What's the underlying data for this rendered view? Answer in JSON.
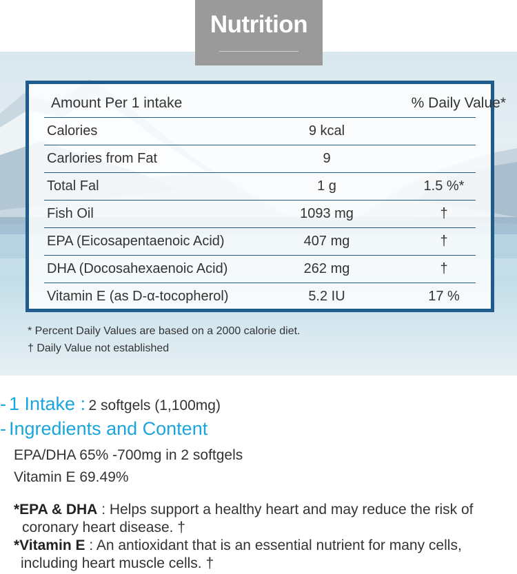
{
  "title": "Nutrition",
  "table": {
    "header": {
      "col1": "Amount Per 1 intake",
      "col3": "% Daily Value*"
    },
    "rows": [
      {
        "name": "Calories",
        "amount": "9 kcal",
        "dv": ""
      },
      {
        "name": "Carlories from Fat",
        "amount": "9",
        "dv": ""
      },
      {
        "name": "Total Fal",
        "amount": "1 g",
        "dv": "1.5 %*"
      },
      {
        "name": "Fish Oil",
        "amount": "1093 mg",
        "dv": "†"
      },
      {
        "name": "EPA (Eicosapentaenoic Acid)",
        "amount": "407 mg",
        "dv": "†"
      },
      {
        "name": "DHA (Docosahexaenoic Acid)",
        "amount": "262 mg",
        "dv": "†"
      },
      {
        "name": "Vitamin E (as D-α-tocopherol)",
        "amount": "5.2 IU",
        "dv": "17 %"
      }
    ]
  },
  "notes": [
    "*  Percent Daily Values are based on a 2000 calorie diet.",
    "†  Daily Value not established"
  ],
  "intake": {
    "label": "1 Intake :",
    "value": "2 softgels (1,100mg)"
  },
  "ingredients": {
    "label": "Ingredients and Content",
    "lines": [
      "EPA/DHA 65% -700mg in 2 softgels",
      "Vitamin E 69.49%"
    ]
  },
  "benefits": [
    {
      "term": "*EPA & DHA",
      "text": " : Helps support a healthy heart and may reduce the risk of",
      "cont": "coronary heart disease. †"
    },
    {
      "term": "*Vitamin E",
      "text": " : An antioxidant that is an essential nutrient for many cells,",
      "cont": "including heart muscle cells. †"
    }
  ],
  "colors": {
    "accent": "#1aa5df",
    "border": "#1f5c8c",
    "tab": "#9a9a9a"
  }
}
